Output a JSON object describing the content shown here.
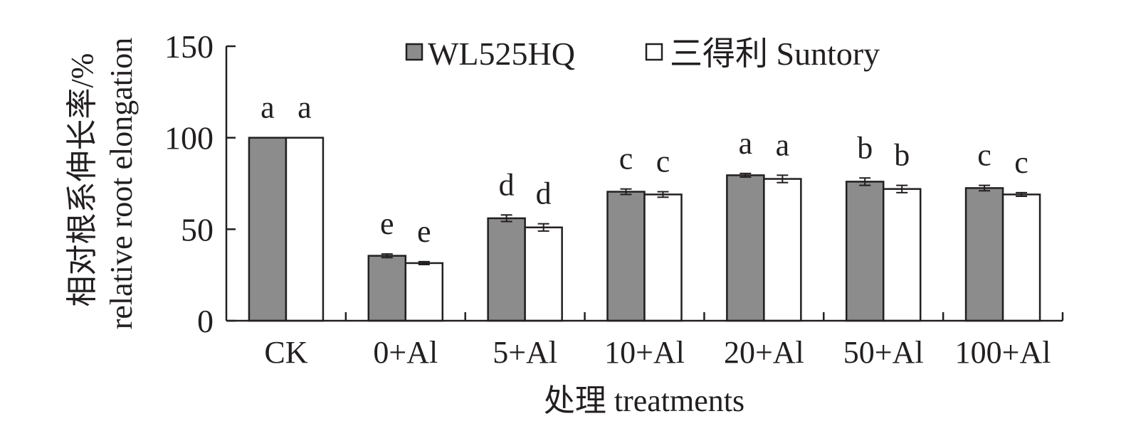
{
  "chart_data": {
    "type": "bar",
    "categories": [
      "CK",
      "0+Al",
      "5+Al",
      "10+Al",
      "20+Al",
      "50+Al",
      "100+Al"
    ],
    "series": [
      {
        "name": "WL525HQ",
        "color": "#8c8c8c",
        "values": [
          100,
          35.5,
          56,
          70.5,
          79.5,
          76,
          72.5
        ],
        "errors": [
          0,
          1,
          1.8,
          1.5,
          1,
          2,
          1.5
        ],
        "letters": [
          "a",
          "e",
          "d",
          "c",
          "a",
          "b",
          "c"
        ]
      },
      {
        "name": "三得利 Suntory",
        "color": "#ffffff",
        "values": [
          100,
          31.5,
          51,
          69,
          77.5,
          72,
          69
        ],
        "errors": [
          0,
          0.8,
          2,
          1.5,
          2,
          2,
          1
        ],
        "letters": [
          "a",
          "e",
          "d",
          "c",
          "a",
          "b",
          "c"
        ]
      }
    ],
    "xlabel": "处理 treatments",
    "ylabel_lines": [
      "相对根系伸长率/%",
      "relative root elongation"
    ],
    "ylim": [
      0,
      150
    ],
    "yticks": [
      0,
      50,
      100,
      150
    ],
    "legend_position": "top-center",
    "grid": false
  }
}
